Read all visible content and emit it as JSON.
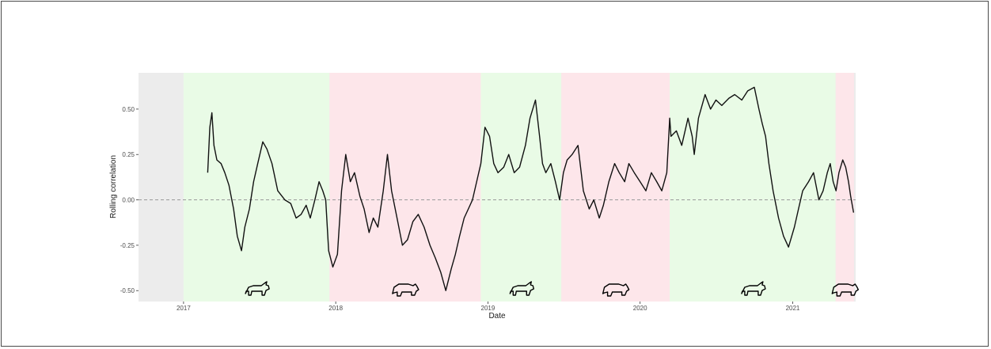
{
  "chart_data": {
    "type": "line",
    "title": "",
    "xlabel": "Date",
    "ylabel": "Rolling correlation",
    "xlim": [
      "2016-09-15",
      "2021-06-01"
    ],
    "ylim": [
      -0.56,
      0.7
    ],
    "x_ticks": [
      "2017-01-01",
      "2018-01-01",
      "2019-01-01",
      "2020-01-01",
      "2021-01-01"
    ],
    "x_tick_labels": [
      "2017",
      "2018",
      "2019",
      "2020",
      "2021"
    ],
    "y_ticks": [
      -0.5,
      -0.25,
      0.0,
      0.25,
      0.5
    ],
    "y_tick_labels": [
      "-0.50",
      "-0.25",
      "0.00",
      "0.25",
      "0.50"
    ],
    "reference_line": {
      "y": 0,
      "style": "dashed",
      "color": "#9a9a9a"
    },
    "background_color": "#ececec",
    "grid": false,
    "regimes": [
      {
        "label": "bull",
        "start": "2017-01-01",
        "end": "2017-12-17",
        "color": "#e9fbe6"
      },
      {
        "label": "bear",
        "start": "2017-12-17",
        "end": "2018-12-15",
        "color": "#fde6ea"
      },
      {
        "label": "bull",
        "start": "2018-12-15",
        "end": "2019-06-26",
        "color": "#e9fbe6"
      },
      {
        "label": "bear",
        "start": "2019-06-26",
        "end": "2020-03-12",
        "color": "#fde6ea"
      },
      {
        "label": "bull",
        "start": "2020-03-12",
        "end": "2021-04-14",
        "color": "#e9fbe6"
      },
      {
        "label": "bear",
        "start": "2021-04-14",
        "end": "2021-05-28",
        "color": "#fde6ea"
      }
    ],
    "series": [
      {
        "color": "#111111",
        "x": [
          "2017-02-28",
          "2017-03-05",
          "2017-03-10",
          "2017-03-15",
          "2017-03-22",
          "2017-04-01",
          "2017-04-10",
          "2017-04-20",
          "2017-05-01",
          "2017-05-10",
          "2017-05-20",
          "2017-05-28",
          "2017-06-08",
          "2017-06-18",
          "2017-06-28",
          "2017-07-10",
          "2017-07-20",
          "2017-08-01",
          "2017-08-15",
          "2017-09-01",
          "2017-09-15",
          "2017-09-28",
          "2017-10-10",
          "2017-10-22",
          "2017-11-01",
          "2017-11-12",
          "2017-11-22",
          "2017-12-01",
          "2017-12-08",
          "2017-12-15",
          "2017-12-25",
          "2018-01-05",
          "2018-01-15",
          "2018-01-25",
          "2018-02-05",
          "2018-02-15",
          "2018-02-28",
          "2018-03-10",
          "2018-03-22",
          "2018-04-01",
          "2018-04-12",
          "2018-04-25",
          "2018-05-05",
          "2018-05-15",
          "2018-05-28",
          "2018-06-10",
          "2018-06-22",
          "2018-07-05",
          "2018-07-18",
          "2018-08-01",
          "2018-08-15",
          "2018-08-28",
          "2018-09-10",
          "2018-09-22",
          "2018-10-05",
          "2018-10-15",
          "2018-10-25",
          "2018-11-05",
          "2018-11-15",
          "2018-11-25",
          "2018-12-05",
          "2018-12-15",
          "2018-12-25",
          "2019-01-05",
          "2019-01-15",
          "2019-01-25",
          "2019-02-08",
          "2019-02-20",
          "2019-03-05",
          "2019-03-18",
          "2019-04-01",
          "2019-04-12",
          "2019-04-25",
          "2019-05-05",
          "2019-05-12",
          "2019-05-20",
          "2019-06-01",
          "2019-06-12",
          "2019-06-22",
          "2019-07-01",
          "2019-07-10",
          "2019-07-22",
          "2019-08-05",
          "2019-08-18",
          "2019-09-01",
          "2019-09-12",
          "2019-09-25",
          "2019-10-05",
          "2019-10-18",
          "2019-11-01",
          "2019-11-12",
          "2019-11-25",
          "2019-12-05",
          "2019-12-18",
          "2020-01-01",
          "2020-01-15",
          "2020-01-28",
          "2020-02-10",
          "2020-02-22",
          "2020-03-05",
          "2020-03-12",
          "2020-03-15",
          "2020-03-28",
          "2020-04-10",
          "2020-04-25",
          "2020-05-05",
          "2020-05-10",
          "2020-05-20",
          "2020-06-05",
          "2020-06-18",
          "2020-07-01",
          "2020-07-15",
          "2020-08-01",
          "2020-08-15",
          "2020-09-01",
          "2020-09-15",
          "2020-10-01",
          "2020-10-12",
          "2020-10-20",
          "2020-10-28",
          "2020-11-05",
          "2020-11-15",
          "2020-11-28",
          "2020-12-10",
          "2020-12-22",
          "2021-01-05",
          "2021-01-15",
          "2021-01-25",
          "2021-02-08",
          "2021-02-20",
          "2021-03-05",
          "2021-03-15",
          "2021-03-25",
          "2021-04-01",
          "2021-04-08",
          "2021-04-15",
          "2021-04-22",
          "2021-05-01",
          "2021-05-08",
          "2021-05-15",
          "2021-05-20",
          "2021-05-27"
        ],
        "y": [
          0.15,
          0.4,
          0.48,
          0.3,
          0.22,
          0.2,
          0.15,
          0.08,
          -0.05,
          -0.2,
          -0.28,
          -0.15,
          -0.05,
          0.1,
          0.2,
          0.32,
          0.28,
          0.2,
          0.05,
          0.0,
          -0.02,
          -0.1,
          -0.08,
          -0.03,
          -0.1,
          0.0,
          0.1,
          0.05,
          0.0,
          -0.28,
          -0.37,
          -0.3,
          0.05,
          0.25,
          0.1,
          0.15,
          0.02,
          -0.05,
          -0.18,
          -0.1,
          -0.15,
          0.05,
          0.25,
          0.05,
          -0.1,
          -0.25,
          -0.22,
          -0.12,
          -0.08,
          -0.15,
          -0.25,
          -0.32,
          -0.4,
          -0.5,
          -0.38,
          -0.3,
          -0.2,
          -0.1,
          -0.05,
          0.0,
          0.1,
          0.2,
          0.4,
          0.35,
          0.2,
          0.15,
          0.18,
          0.25,
          0.15,
          0.18,
          0.3,
          0.45,
          0.55,
          0.35,
          0.2,
          0.15,
          0.2,
          0.1,
          0.0,
          0.15,
          0.22,
          0.25,
          0.3,
          0.05,
          -0.05,
          0.0,
          -0.1,
          -0.03,
          0.1,
          0.2,
          0.15,
          0.1,
          0.2,
          0.15,
          0.1,
          0.05,
          0.15,
          0.1,
          0.05,
          0.15,
          0.45,
          0.35,
          0.38,
          0.3,
          0.45,
          0.35,
          0.25,
          0.45,
          0.58,
          0.5,
          0.55,
          0.52,
          0.56,
          0.58,
          0.55,
          0.6,
          0.62,
          0.5,
          0.42,
          0.35,
          0.2,
          0.05,
          -0.1,
          -0.2,
          -0.26,
          -0.15,
          -0.05,
          0.05,
          0.1,
          0.15,
          0.0,
          0.05,
          0.15,
          0.2,
          0.1,
          0.05,
          0.15,
          0.22,
          0.18,
          0.1,
          0.02,
          -0.07
        ]
      }
    ]
  }
}
